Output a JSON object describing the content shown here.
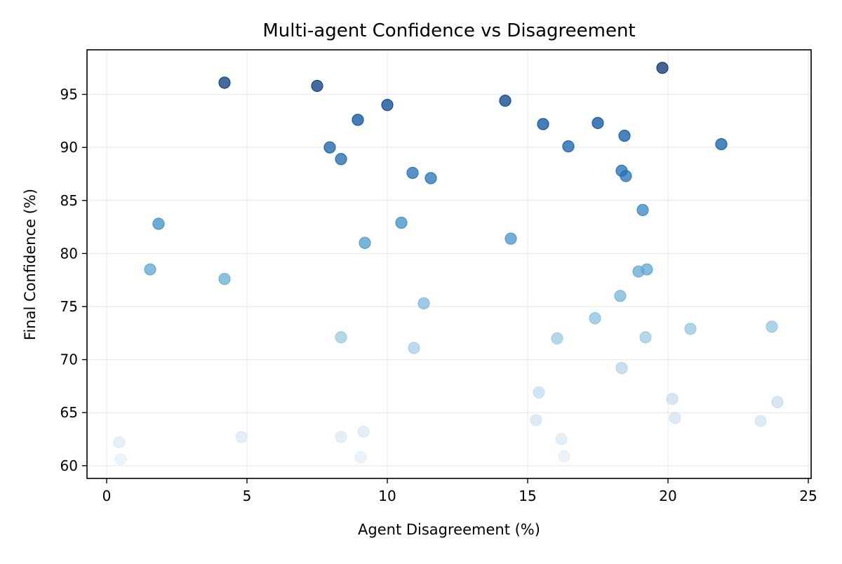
{
  "chart_data": {
    "type": "scatter",
    "title": "Multi-agent Confidence vs Disagreement",
    "xlabel": "Agent Disagreement (%)",
    "ylabel": "Final Confidence (%)",
    "xlim": [
      -0.7,
      25.1
    ],
    "ylim": [
      58.8,
      99.2
    ],
    "xticks": [
      0,
      5,
      10,
      15,
      20,
      25
    ],
    "yticks": [
      60,
      65,
      70,
      75,
      80,
      85,
      90,
      95
    ],
    "grid": true,
    "color_encoding": "Blues colormap by final confidence",
    "colormap_range": [
      60,
      97.5
    ],
    "points": [
      {
        "x": 4.2,
        "y": 96.1
      },
      {
        "x": 7.5,
        "y": 95.8
      },
      {
        "x": 19.8,
        "y": 97.5
      },
      {
        "x": 14.2,
        "y": 94.4
      },
      {
        "x": 10.0,
        "y": 94.0
      },
      {
        "x": 8.95,
        "y": 92.6
      },
      {
        "x": 15.55,
        "y": 92.2
      },
      {
        "x": 17.5,
        "y": 92.3
      },
      {
        "x": 18.45,
        "y": 91.1
      },
      {
        "x": 21.9,
        "y": 90.3
      },
      {
        "x": 7.95,
        "y": 90.0
      },
      {
        "x": 16.45,
        "y": 90.1
      },
      {
        "x": 8.35,
        "y": 88.9
      },
      {
        "x": 10.9,
        "y": 87.6
      },
      {
        "x": 11.55,
        "y": 87.1
      },
      {
        "x": 18.35,
        "y": 87.8
      },
      {
        "x": 18.5,
        "y": 87.3
      },
      {
        "x": 19.1,
        "y": 84.1
      },
      {
        "x": 1.85,
        "y": 82.8
      },
      {
        "x": 10.5,
        "y": 82.9
      },
      {
        "x": 9.2,
        "y": 81.0
      },
      {
        "x": 14.4,
        "y": 81.4
      },
      {
        "x": 1.55,
        "y": 78.5
      },
      {
        "x": 4.2,
        "y": 77.6
      },
      {
        "x": 18.95,
        "y": 78.3
      },
      {
        "x": 19.25,
        "y": 78.5
      },
      {
        "x": 18.3,
        "y": 76.0
      },
      {
        "x": 11.3,
        "y": 75.3
      },
      {
        "x": 17.4,
        "y": 73.9
      },
      {
        "x": 20.8,
        "y": 72.9
      },
      {
        "x": 23.7,
        "y": 73.1
      },
      {
        "x": 8.35,
        "y": 72.1
      },
      {
        "x": 16.05,
        "y": 72.0
      },
      {
        "x": 19.2,
        "y": 72.1
      },
      {
        "x": 10.95,
        "y": 71.1
      },
      {
        "x": 18.35,
        "y": 69.2
      },
      {
        "x": 15.4,
        "y": 66.9
      },
      {
        "x": 20.15,
        "y": 66.3
      },
      {
        "x": 23.9,
        "y": 66.0
      },
      {
        "x": 15.3,
        "y": 64.3
      },
      {
        "x": 20.25,
        "y": 64.5
      },
      {
        "x": 23.3,
        "y": 64.2
      },
      {
        "x": 9.15,
        "y": 63.2
      },
      {
        "x": 4.8,
        "y": 62.7
      },
      {
        "x": 8.35,
        "y": 62.7
      },
      {
        "x": 16.2,
        "y": 62.5
      },
      {
        "x": 0.45,
        "y": 62.2
      },
      {
        "x": 0.5,
        "y": 60.6
      },
      {
        "x": 9.05,
        "y": 60.8
      },
      {
        "x": 16.3,
        "y": 60.9
      }
    ]
  }
}
